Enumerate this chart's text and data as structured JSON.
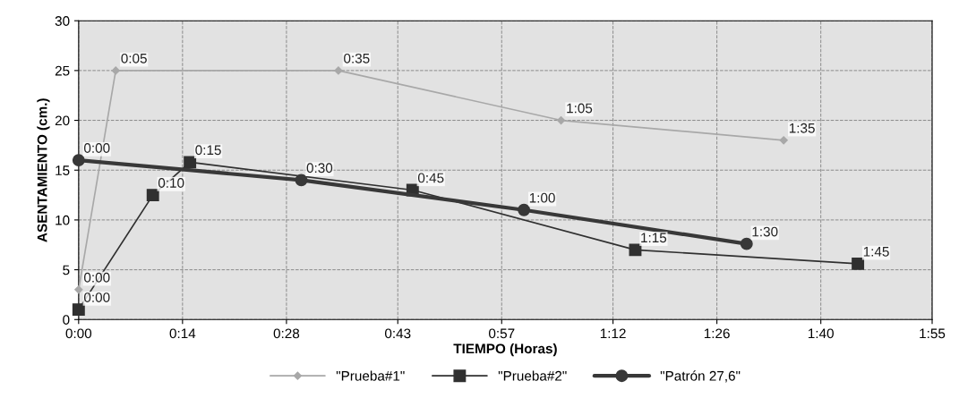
{
  "chart_data": {
    "type": "line",
    "xlabel": "TIEMPO (Horas)",
    "ylabel": "ASENTAMIENTO (cm.)",
    "series": [
      {
        "name": "\"Prueba#1\"",
        "color": "#a8a8a8",
        "marker": "diamond",
        "x": [
          0,
          0.0833,
          0.5833,
          1.0833,
          1.5833
        ],
        "values": [
          3,
          25,
          25,
          20,
          18
        ]
      },
      {
        "name": "\"Prueba#2\"",
        "color": "#303030",
        "marker": "square",
        "x": [
          0,
          0.1667,
          0.25,
          0.75,
          1.25,
          1.75
        ],
        "values": [
          1,
          12.5,
          15.8,
          13,
          7,
          5.6
        ]
      },
      {
        "name": "\"Patrón 27,6\"",
        "color": "#383838",
        "marker": "circle",
        "x": [
          0,
          0.5,
          1.0,
          1.5
        ],
        "values": [
          16,
          14,
          11,
          7.6
        ]
      }
    ],
    "annotations": [
      {
        "text": "0:00",
        "x": 0,
        "y": 3
      },
      {
        "text": "0:05",
        "x": 0.0833,
        "y": 25
      },
      {
        "text": "0:35",
        "x": 0.5833,
        "y": 25
      },
      {
        "text": "1:05",
        "x": 1.0833,
        "y": 20
      },
      {
        "text": "1:35",
        "x": 1.5833,
        "y": 18
      },
      {
        "text": "0:00",
        "x": 0,
        "y": 1
      },
      {
        "text": "0:10",
        "x": 0.1667,
        "y": 12.5
      },
      {
        "text": "0:15",
        "x": 0.25,
        "y": 15.8
      },
      {
        "text": "0:45",
        "x": 0.75,
        "y": 13
      },
      {
        "text": "1:15",
        "x": 1.25,
        "y": 7
      },
      {
        "text": "1:45",
        "x": 1.75,
        "y": 5.6
      },
      {
        "text": "0:00",
        "x": 0,
        "y": 16
      },
      {
        "text": "0:30",
        "x": 0.5,
        "y": 14
      },
      {
        "text": "1:00",
        "x": 1.0,
        "y": 11
      },
      {
        "text": "1:30",
        "x": 1.5,
        "y": 7.6
      }
    ],
    "xlim": [
      0,
      1.9167
    ],
    "xticks": [
      {
        "value": 0,
        "label": "0:00"
      },
      {
        "value": 0.2333,
        "label": "0:14"
      },
      {
        "value": 0.4667,
        "label": "0:28"
      },
      {
        "value": 0.7167,
        "label": "0:43"
      },
      {
        "value": 0.95,
        "label": "0:57"
      },
      {
        "value": 1.2,
        "label": "1:12"
      },
      {
        "value": 1.4333,
        "label": "1:26"
      },
      {
        "value": 1.6667,
        "label": "1:40"
      },
      {
        "value": 1.9167,
        "label": "1:55"
      }
    ],
    "ylim": [
      0,
      30
    ],
    "yticks": [
      0,
      5,
      10,
      15,
      20,
      25,
      30
    ],
    "grid": true,
    "legend": "bottom",
    "line_style": "solid"
  }
}
